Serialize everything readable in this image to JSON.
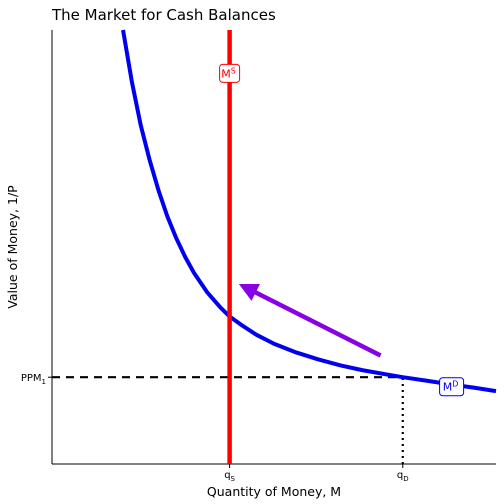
{
  "chart_data": {
    "type": "line",
    "title": "The Market for Cash Balances",
    "xlabel": "Quantity of Money, M",
    "ylabel": "Value of Money, 1/P",
    "xlim": [
      0,
      1
    ],
    "ylim": [
      0,
      1
    ],
    "grid": false,
    "legend": "none",
    "x_ticks": [
      {
        "value": 0.4,
        "label_main": "q",
        "label_sub": "S"
      },
      {
        "value": 0.79,
        "label_main": "q",
        "label_sub": "D"
      }
    ],
    "y_ticks": [
      {
        "value": 0.2,
        "label_main": "PPM",
        "label_sub": "1"
      }
    ],
    "series": [
      {
        "name": "M^D",
        "label_main": "M",
        "label_sup": "D",
        "label_at": {
          "x": 0.9,
          "y": 0.178
        },
        "color": "#0000ee",
        "x": [
          0.16,
          0.18,
          0.2,
          0.22,
          0.24,
          0.26,
          0.28,
          0.3,
          0.32,
          0.35,
          0.38,
          0.4,
          0.43,
          0.46,
          0.5,
          0.55,
          0.6,
          0.65,
          0.7,
          0.75,
          0.79,
          0.85,
          0.9,
          0.95,
          1.0
        ],
        "y": [
          1.0,
          0.88,
          0.78,
          0.7,
          0.63,
          0.57,
          0.52,
          0.477,
          0.44,
          0.395,
          0.36,
          0.34,
          0.318,
          0.298,
          0.277,
          0.257,
          0.241,
          0.227,
          0.216,
          0.207,
          0.2,
          0.191,
          0.183,
          0.176,
          0.168
        ]
      },
      {
        "name": "M^S",
        "label_main": "M",
        "label_sup": "S",
        "label_at": {
          "x": 0.4,
          "y": 0.9
        },
        "color": "#ff0000",
        "x": [
          0.4,
          0.4
        ],
        "y": [
          0.0,
          1.0
        ]
      }
    ],
    "reference_lines": [
      {
        "type": "horizontal",
        "style": "dashed",
        "y": 0.2,
        "x_from": 0.0,
        "x_to": 0.79,
        "color": "#000000"
      },
      {
        "type": "vertical",
        "style": "dotted",
        "x": 0.79,
        "y_from": 0.0,
        "y_to": 0.2,
        "color": "#000000"
      }
    ],
    "annotations": [
      {
        "type": "arrow",
        "color": "#8a00e6",
        "from": {
          "x": 0.74,
          "y": 0.25
        },
        "to": {
          "x": 0.44,
          "y": 0.405
        }
      }
    ]
  }
}
